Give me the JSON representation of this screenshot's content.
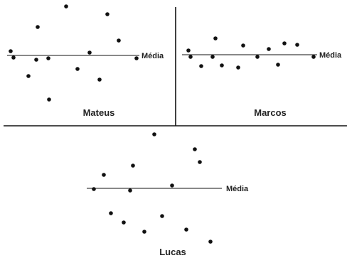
{
  "colors": {
    "ink": "#111111",
    "text": "#222222",
    "background": "#ffffff"
  },
  "mean_label": "Média",
  "panels": [
    {
      "name": "Mateus",
      "points": [
        [
          93,
          9
        ],
        [
          151,
          20
        ],
        [
          53,
          38
        ],
        [
          167,
          57
        ],
        [
          15,
          72
        ],
        [
          126,
          74
        ],
        [
          19,
          81
        ],
        [
          51,
          84
        ],
        [
          68,
          82
        ],
        [
          192,
          82
        ],
        [
          109,
          97
        ],
        [
          40,
          107
        ],
        [
          140,
          112
        ],
        [
          69,
          140
        ]
      ]
    },
    {
      "name": "Marcos",
      "points": [
        [
          303,
          54
        ],
        [
          342,
          64
        ],
        [
          400,
          61
        ],
        [
          418,
          63
        ],
        [
          265,
          71
        ],
        [
          378,
          69
        ],
        [
          268,
          80
        ],
        [
          299,
          80
        ],
        [
          362,
          80
        ],
        [
          441,
          80
        ],
        [
          283,
          93
        ],
        [
          312,
          92
        ],
        [
          391,
          91
        ],
        [
          335,
          95
        ]
      ]
    },
    {
      "name": "Lucas",
      "points": [
        [
          217,
          189
        ],
        [
          274,
          210
        ],
        [
          281,
          228
        ],
        [
          187,
          233
        ],
        [
          146,
          246
        ],
        [
          132,
          266
        ],
        [
          183,
          268
        ],
        [
          242,
          261
        ],
        [
          156,
          300
        ],
        [
          228,
          304
        ],
        [
          174,
          313
        ],
        [
          203,
          326
        ],
        [
          262,
          323
        ],
        [
          296,
          340
        ]
      ]
    }
  ]
}
